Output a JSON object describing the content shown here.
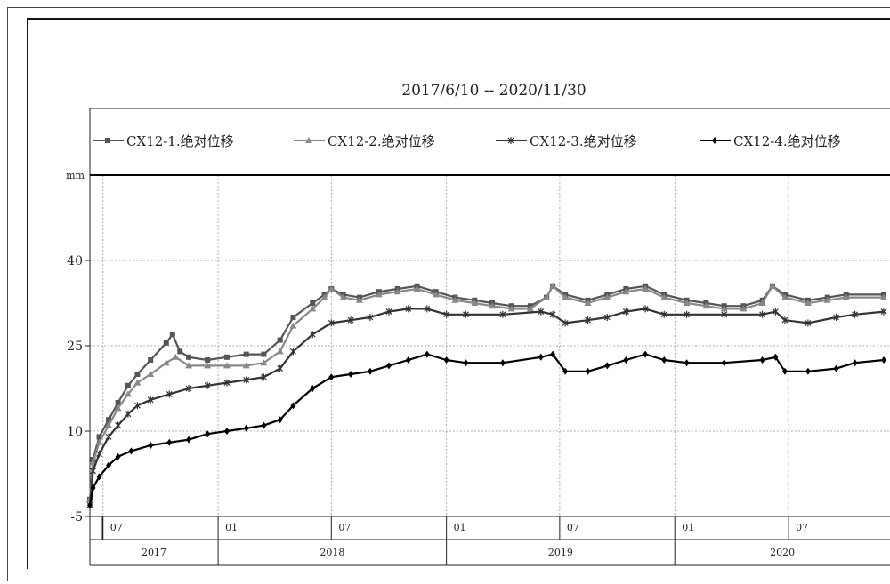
{
  "chart_data": {
    "type": "line",
    "title": "2017/6/10 -- 2020/11/30",
    "ylabel": "mm",
    "xlabel": "",
    "ylim": [
      -5,
      55
    ],
    "yticks": [
      -5,
      10,
      25,
      40
    ],
    "xlim": [
      "2017-06-10",
      "2020-12-10"
    ],
    "x_month_ticks": [
      {
        "date": "2017-07-01",
        "label": "07"
      },
      {
        "date": "2018-01-01",
        "label": "01"
      },
      {
        "date": "2018-07-01",
        "label": "07"
      },
      {
        "date": "2019-01-01",
        "label": "01"
      },
      {
        "date": "2019-07-01",
        "label": "07"
      },
      {
        "date": "2020-01-01",
        "label": "01"
      },
      {
        "date": "2020-07-01",
        "label": "07"
      }
    ],
    "x_year_labels": [
      {
        "start": "2017-06-10",
        "end": "2018-01-01",
        "label": "2017"
      },
      {
        "start": "2018-01-01",
        "end": "2019-01-01",
        "label": "2018"
      },
      {
        "start": "2019-01-01",
        "end": "2020-01-01",
        "label": "2019"
      },
      {
        "start": "2020-01-01",
        "end": "2020-12-10",
        "label": "2020"
      }
    ],
    "grid": true,
    "legend_position": "top",
    "series": [
      {
        "name": "CX12-1.绝对位移",
        "marker": "square",
        "color": "#555555",
        "points": [
          [
            "2017-06-10",
            -2
          ],
          [
            "2017-06-15",
            5
          ],
          [
            "2017-06-25",
            9
          ],
          [
            "2017-07-10",
            12
          ],
          [
            "2017-07-25",
            15
          ],
          [
            "2017-08-10",
            18
          ],
          [
            "2017-08-25",
            20
          ],
          [
            "2017-09-15",
            22.5
          ],
          [
            "2017-10-10",
            25.5
          ],
          [
            "2017-10-20",
            27
          ],
          [
            "2017-11-01",
            24
          ],
          [
            "2017-11-15",
            23
          ],
          [
            "2017-12-15",
            22.5
          ],
          [
            "2018-01-15",
            23
          ],
          [
            "2018-02-15",
            23.5
          ],
          [
            "2018-03-15",
            23.5
          ],
          [
            "2018-04-10",
            26
          ],
          [
            "2018-05-01",
            30
          ],
          [
            "2018-06-01",
            32.5
          ],
          [
            "2018-06-20",
            34
          ],
          [
            "2018-07-01",
            35
          ],
          [
            "2018-07-20",
            34
          ],
          [
            "2018-08-15",
            33.5
          ],
          [
            "2018-09-15",
            34.5
          ],
          [
            "2018-10-15",
            35
          ],
          [
            "2018-11-15",
            35.5
          ],
          [
            "2018-12-15",
            34.5
          ],
          [
            "2019-01-15",
            33.5
          ],
          [
            "2019-02-15",
            33
          ],
          [
            "2019-03-15",
            32.5
          ],
          [
            "2019-04-15",
            32
          ],
          [
            "2019-05-15",
            32
          ],
          [
            "2019-06-10",
            33.5
          ],
          [
            "2019-06-20",
            35.5
          ],
          [
            "2019-07-10",
            34
          ],
          [
            "2019-08-15",
            33
          ],
          [
            "2019-09-15",
            34
          ],
          [
            "2019-10-15",
            35
          ],
          [
            "2019-11-15",
            35.5
          ],
          [
            "2019-12-15",
            34
          ],
          [
            "2020-01-20",
            33
          ],
          [
            "2020-02-20",
            32.5
          ],
          [
            "2020-03-20",
            32
          ],
          [
            "2020-04-20",
            32
          ],
          [
            "2020-05-20",
            33
          ],
          [
            "2020-06-05",
            35.5
          ],
          [
            "2020-06-25",
            34
          ],
          [
            "2020-08-01",
            33
          ],
          [
            "2020-09-01",
            33.5
          ],
          [
            "2020-10-01",
            34
          ],
          [
            "2020-11-30",
            34
          ]
        ]
      },
      {
        "name": "CX12-2.绝对位移",
        "marker": "triangle",
        "color": "#888888",
        "points": [
          [
            "2017-06-10",
            -2
          ],
          [
            "2017-06-15",
            4.5
          ],
          [
            "2017-06-25",
            8
          ],
          [
            "2017-07-10",
            11
          ],
          [
            "2017-07-25",
            14
          ],
          [
            "2017-08-10",
            16.5
          ],
          [
            "2017-08-25",
            18.5
          ],
          [
            "2017-09-15",
            20
          ],
          [
            "2017-10-10",
            22
          ],
          [
            "2017-10-25",
            23
          ],
          [
            "2017-11-15",
            21.5
          ],
          [
            "2017-12-15",
            21.5
          ],
          [
            "2018-01-15",
            21.5
          ],
          [
            "2018-02-15",
            21.5
          ],
          [
            "2018-03-15",
            22
          ],
          [
            "2018-04-10",
            24
          ],
          [
            "2018-05-01",
            28.5
          ],
          [
            "2018-06-01",
            31.5
          ],
          [
            "2018-06-20",
            33.5
          ],
          [
            "2018-07-01",
            35
          ],
          [
            "2018-07-20",
            33.5
          ],
          [
            "2018-08-15",
            33
          ],
          [
            "2018-09-15",
            34
          ],
          [
            "2018-10-15",
            34.5
          ],
          [
            "2018-11-15",
            35
          ],
          [
            "2018-12-15",
            34
          ],
          [
            "2019-01-15",
            33
          ],
          [
            "2019-02-15",
            32.5
          ],
          [
            "2019-03-15",
            32
          ],
          [
            "2019-04-15",
            31.5
          ],
          [
            "2019-05-15",
            31.5
          ],
          [
            "2019-06-10",
            33.5
          ],
          [
            "2019-06-20",
            35.5
          ],
          [
            "2019-07-10",
            33.5
          ],
          [
            "2019-08-15",
            32.5
          ],
          [
            "2019-09-15",
            33.5
          ],
          [
            "2019-10-15",
            34.5
          ],
          [
            "2019-11-15",
            35
          ],
          [
            "2019-12-15",
            33.5
          ],
          [
            "2020-01-20",
            32.5
          ],
          [
            "2020-02-20",
            32
          ],
          [
            "2020-03-20",
            31.5
          ],
          [
            "2020-04-20",
            31.5
          ],
          [
            "2020-05-20",
            32.5
          ],
          [
            "2020-06-05",
            35.5
          ],
          [
            "2020-06-25",
            33.5
          ],
          [
            "2020-08-01",
            32.5
          ],
          [
            "2020-09-01",
            33
          ],
          [
            "2020-10-01",
            33.5
          ],
          [
            "2020-11-30",
            33.5
          ]
        ]
      },
      {
        "name": "CX12-3.绝对位移",
        "marker": "star",
        "color": "#333333",
        "points": [
          [
            "2017-06-10",
            -3
          ],
          [
            "2017-06-15",
            3
          ],
          [
            "2017-06-25",
            6
          ],
          [
            "2017-07-10",
            9
          ],
          [
            "2017-07-25",
            11
          ],
          [
            "2017-08-10",
            13
          ],
          [
            "2017-08-25",
            14.5
          ],
          [
            "2017-09-15",
            15.5
          ],
          [
            "2017-10-15",
            16.5
          ],
          [
            "2017-11-15",
            17.5
          ],
          [
            "2017-12-15",
            18
          ],
          [
            "2018-01-15",
            18.5
          ],
          [
            "2018-02-15",
            19
          ],
          [
            "2018-03-15",
            19.5
          ],
          [
            "2018-04-10",
            21
          ],
          [
            "2018-05-01",
            24
          ],
          [
            "2018-06-01",
            27
          ],
          [
            "2018-07-01",
            29
          ],
          [
            "2018-08-01",
            29.5
          ],
          [
            "2018-09-01",
            30
          ],
          [
            "2018-10-01",
            31
          ],
          [
            "2018-11-01",
            31.5
          ],
          [
            "2018-12-01",
            31.5
          ],
          [
            "2019-01-01",
            30.5
          ],
          [
            "2019-02-01",
            30.5
          ],
          [
            "2019-04-01",
            30.5
          ],
          [
            "2019-06-01",
            31
          ],
          [
            "2019-06-20",
            30.5
          ],
          [
            "2019-07-10",
            29
          ],
          [
            "2019-08-15",
            29.5
          ],
          [
            "2019-09-15",
            30
          ],
          [
            "2019-10-15",
            31
          ],
          [
            "2019-11-15",
            31.5
          ],
          [
            "2019-12-15",
            30.5
          ],
          [
            "2020-01-20",
            30.5
          ],
          [
            "2020-03-20",
            30.5
          ],
          [
            "2020-05-20",
            30.5
          ],
          [
            "2020-06-10",
            31
          ],
          [
            "2020-06-25",
            29.5
          ],
          [
            "2020-08-01",
            29
          ],
          [
            "2020-09-15",
            30
          ],
          [
            "2020-10-15",
            30.5
          ],
          [
            "2020-11-30",
            31
          ]
        ]
      },
      {
        "name": "CX12-4.绝对位移",
        "marker": "diamond",
        "color": "#000000",
        "points": [
          [
            "2017-06-10",
            -3
          ],
          [
            "2017-06-15",
            0
          ],
          [
            "2017-06-25",
            2
          ],
          [
            "2017-07-10",
            4
          ],
          [
            "2017-07-25",
            5.5
          ],
          [
            "2017-08-15",
            6.5
          ],
          [
            "2017-09-15",
            7.5
          ],
          [
            "2017-10-15",
            8
          ],
          [
            "2017-11-15",
            8.5
          ],
          [
            "2017-12-15",
            9.5
          ],
          [
            "2018-01-15",
            10
          ],
          [
            "2018-02-15",
            10.5
          ],
          [
            "2018-03-15",
            11
          ],
          [
            "2018-04-10",
            12
          ],
          [
            "2018-05-01",
            14.5
          ],
          [
            "2018-06-01",
            17.5
          ],
          [
            "2018-07-01",
            19.5
          ],
          [
            "2018-08-01",
            20
          ],
          [
            "2018-09-01",
            20.5
          ],
          [
            "2018-10-01",
            21.5
          ],
          [
            "2018-11-01",
            22.5
          ],
          [
            "2018-12-01",
            23.5
          ],
          [
            "2019-01-01",
            22.5
          ],
          [
            "2019-02-01",
            22
          ],
          [
            "2019-04-01",
            22
          ],
          [
            "2019-06-01",
            23
          ],
          [
            "2019-06-20",
            23.5
          ],
          [
            "2019-07-10",
            20.5
          ],
          [
            "2019-08-15",
            20.5
          ],
          [
            "2019-09-15",
            21.5
          ],
          [
            "2019-10-15",
            22.5
          ],
          [
            "2019-11-15",
            23.5
          ],
          [
            "2019-12-15",
            22.5
          ],
          [
            "2020-01-20",
            22
          ],
          [
            "2020-03-20",
            22
          ],
          [
            "2020-05-20",
            22.5
          ],
          [
            "2020-06-10",
            23
          ],
          [
            "2020-06-25",
            20.5
          ],
          [
            "2020-08-01",
            20.5
          ],
          [
            "2020-09-15",
            21
          ],
          [
            "2020-10-15",
            22
          ],
          [
            "2020-11-30",
            22.5
          ]
        ]
      }
    ]
  }
}
